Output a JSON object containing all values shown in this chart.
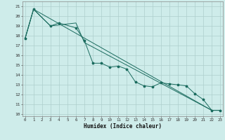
{
  "xlabel": "Humidex (Indice chaleur)",
  "background_color": "#ceecea",
  "grid_color": "#aecfcc",
  "line_color": "#1a6b5e",
  "series": [
    {
      "x": [
        0,
        1,
        3,
        4,
        6,
        7,
        8,
        9,
        10,
        11,
        12,
        13,
        14,
        15,
        16,
        17,
        18,
        19,
        20,
        21,
        22,
        23
      ],
      "y": [
        17.7,
        20.7,
        19.0,
        19.3,
        18.8,
        17.5,
        15.2,
        15.2,
        14.8,
        14.9,
        14.6,
        13.3,
        12.9,
        12.8,
        13.2,
        13.1,
        13.0,
        12.9,
        12.1,
        11.5,
        10.4,
        10.4
      ],
      "marker": true
    },
    {
      "x": [
        0,
        1,
        3,
        6,
        7,
        22,
        23
      ],
      "y": [
        17.7,
        20.7,
        19.0,
        19.3,
        17.3,
        10.4,
        10.4
      ],
      "marker": false
    },
    {
      "x": [
        0,
        1,
        22,
        23
      ],
      "y": [
        17.7,
        20.7,
        10.4,
        10.4
      ],
      "marker": false
    }
  ],
  "xlim": [
    -0.3,
    23.3
  ],
  "ylim": [
    9.8,
    21.5
  ],
  "yticks": [
    10,
    11,
    12,
    13,
    14,
    15,
    16,
    17,
    18,
    19,
    20,
    21
  ],
  "xticks": [
    0,
    1,
    2,
    3,
    4,
    5,
    6,
    7,
    8,
    9,
    10,
    11,
    12,
    13,
    14,
    15,
    16,
    17,
    18,
    19,
    20,
    21,
    22,
    23
  ],
  "xtick_labels": [
    "0",
    "1",
    "2",
    "3",
    "4",
    "5",
    "6",
    "7",
    "8",
    "9",
    "10",
    "11",
    "12",
    "13",
    "14",
    "15",
    "16",
    "17",
    "18",
    "19",
    "20",
    "21",
    "22",
    "23"
  ]
}
